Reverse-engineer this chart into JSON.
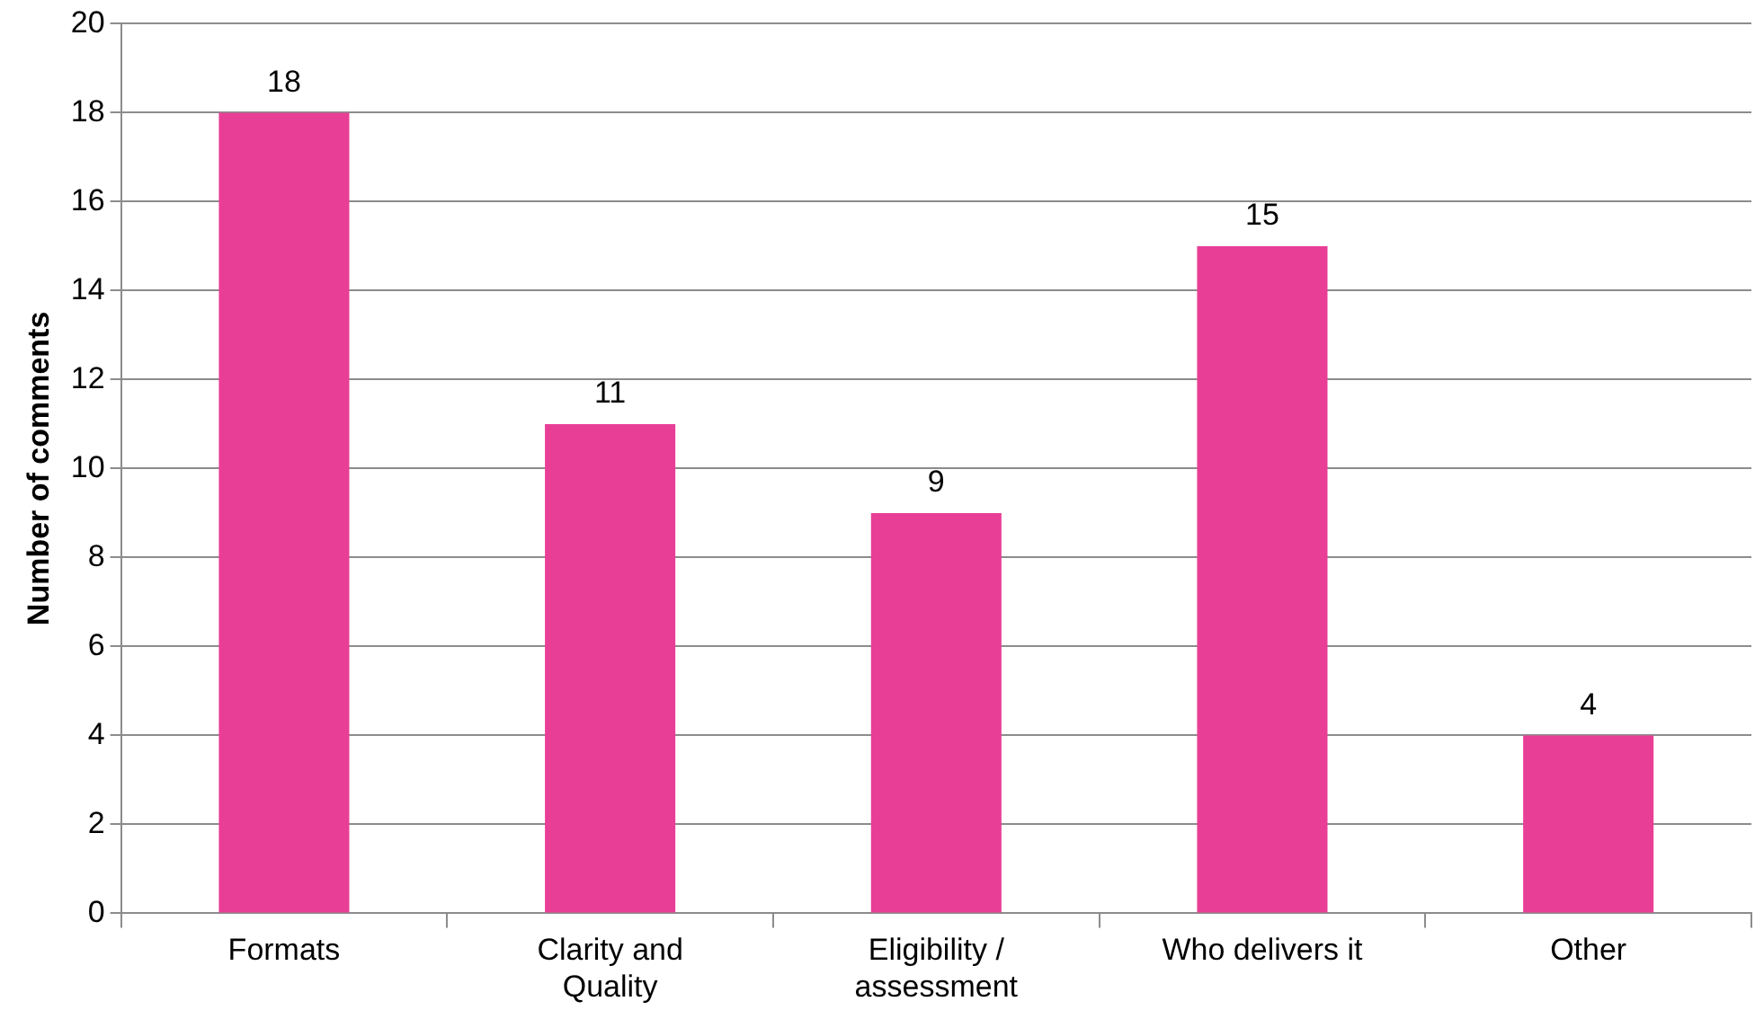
{
  "chart_data": {
    "type": "bar",
    "ylabel": "Number of comments",
    "categories": [
      "Formats",
      "Clarity and Quality",
      "Eligibility / assessment",
      "Who delivers it",
      "Other"
    ],
    "values": [
      18,
      11,
      9,
      15,
      4
    ],
    "color": "#e83e96",
    "ylim": [
      0,
      20
    ],
    "yticks": [
      0,
      2,
      4,
      6,
      8,
      10,
      12,
      14,
      16,
      18,
      20
    ],
    "grid": "y",
    "data_labels": true,
    "legend": false
  }
}
